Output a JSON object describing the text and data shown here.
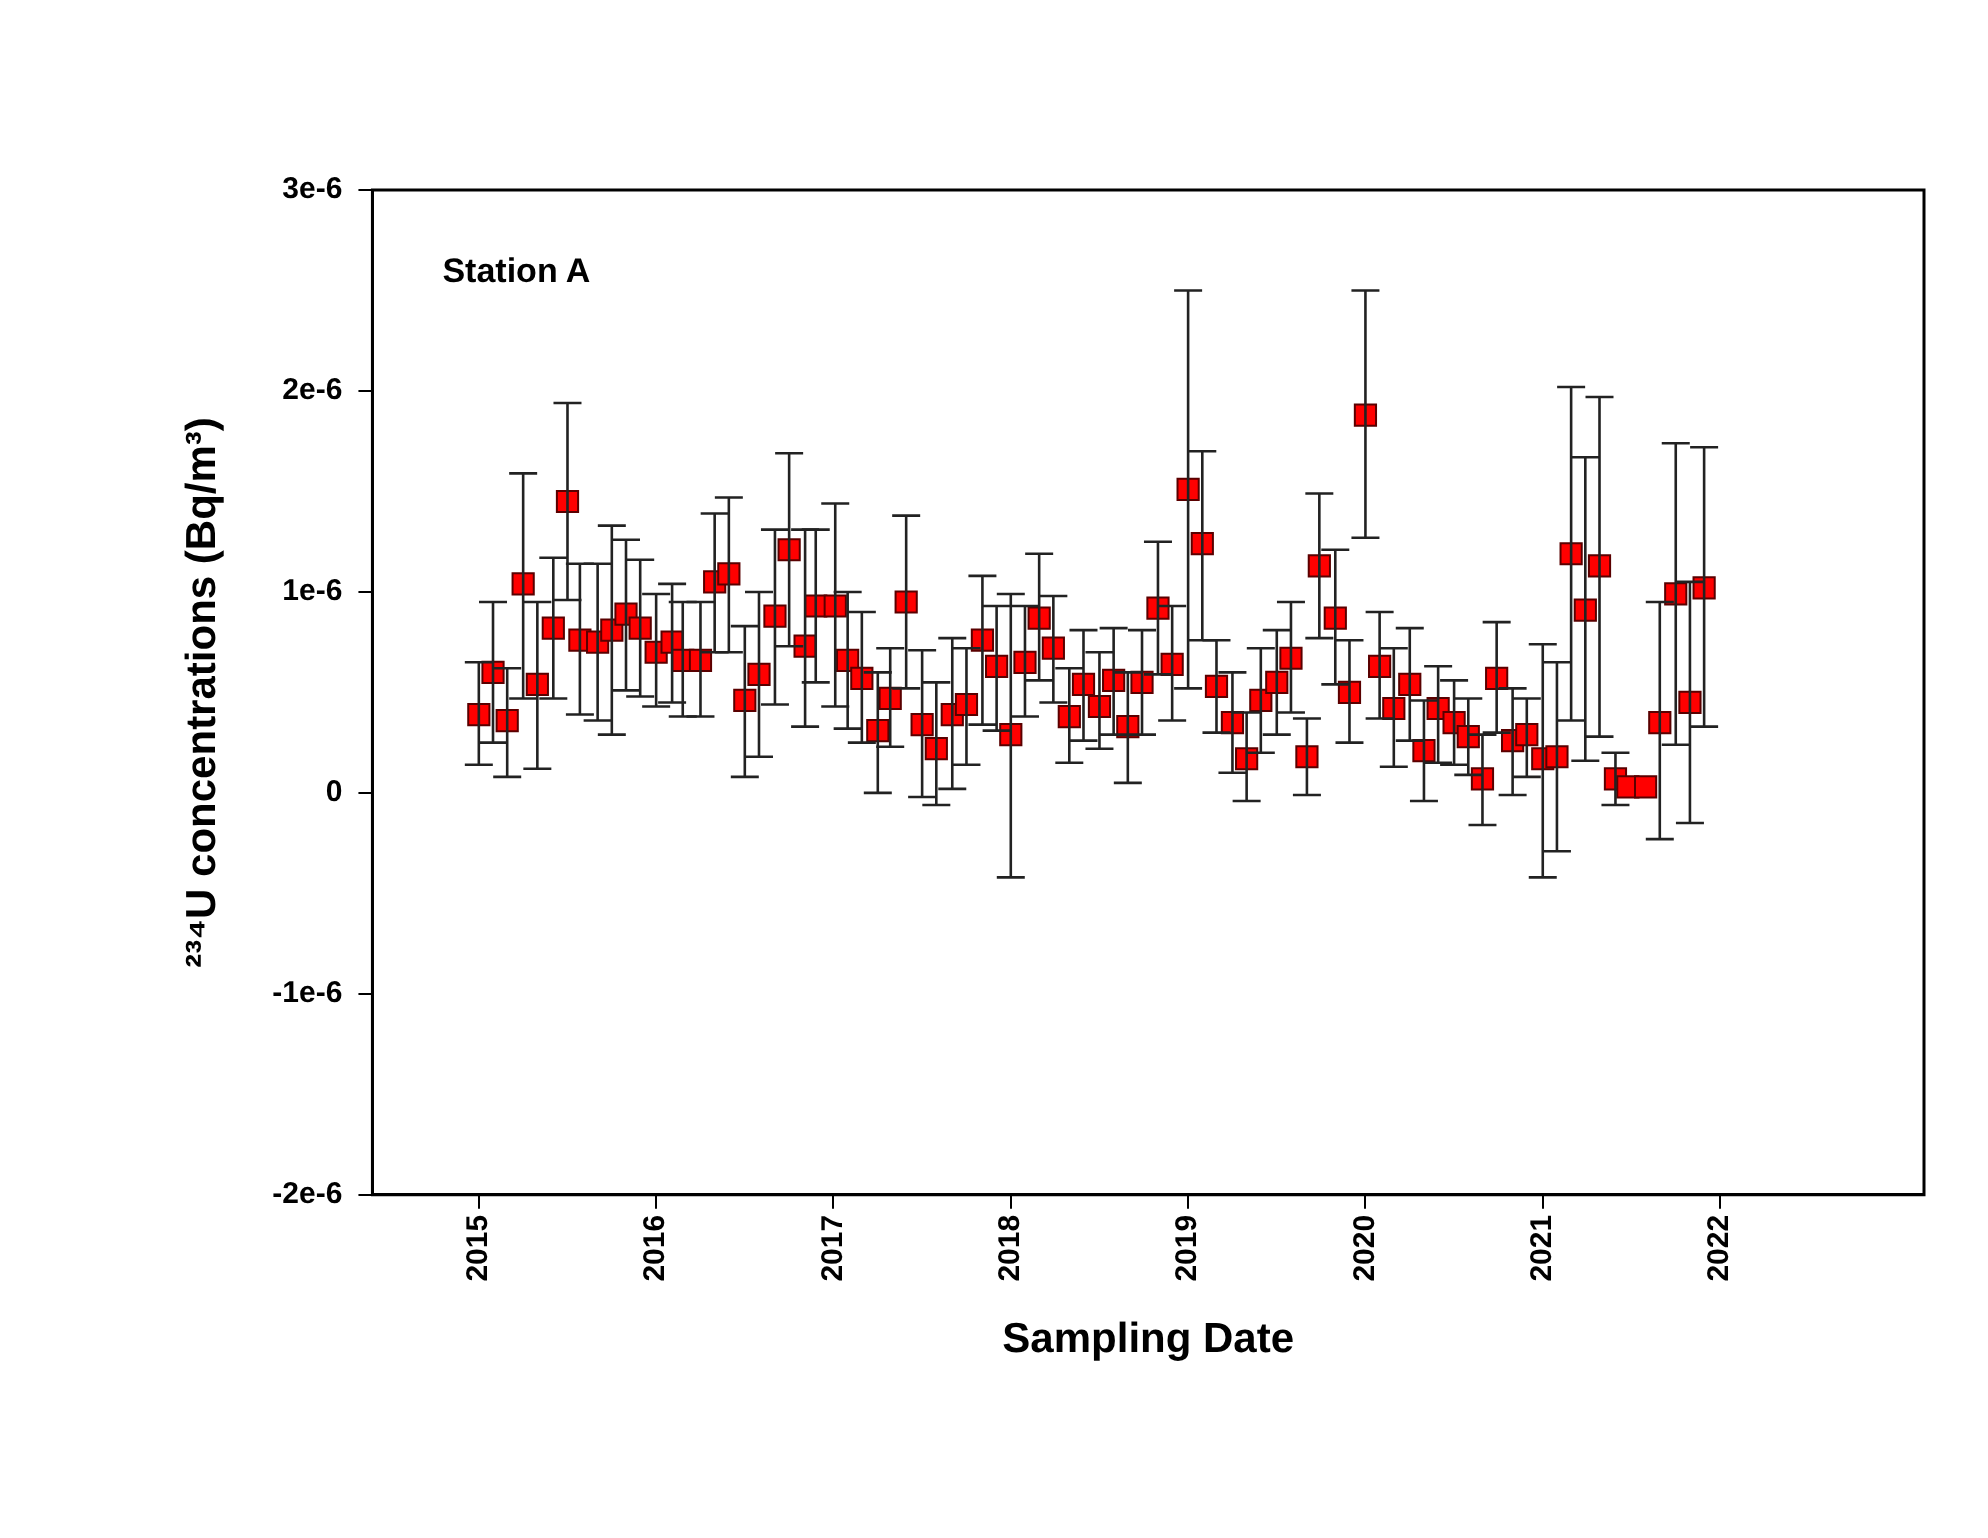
{
  "chart_data": {
    "type": "scatter",
    "xlabel": "Sampling Date",
    "ylabel": "²³⁴U concentrations (Bq/m³)",
    "annotations": [
      "Station A"
    ],
    "xlim": [
      2014.4,
      2023.15
    ],
    "xticks": [
      2015,
      2016,
      2017,
      2018,
      2019,
      2020,
      2021,
      2022
    ],
    "ylim": [
      -2e-06,
      3e-06
    ],
    "yticks": [
      {
        "value": -2e-06,
        "label": "-2e-6"
      },
      {
        "value": -1e-06,
        "label": "-1e-6"
      },
      0,
      {
        "value": 1e-06,
        "label": "1e-6"
      },
      {
        "value": 2e-06,
        "label": "2e-6"
      },
      {
        "value": 3e-06,
        "label": "3e-6"
      }
    ],
    "grid": false,
    "legend": false,
    "marker": "square",
    "series": [
      {
        "color": "#ff0000",
        "x": [
          2015.0,
          2015.08,
          2015.16,
          2015.25,
          2015.33,
          2015.42,
          2015.5,
          2015.57,
          2015.67,
          2015.75,
          2015.83,
          2015.91,
          2016.0,
          2016.09,
          2016.15,
          2016.25,
          2016.33,
          2016.41,
          2016.5,
          2016.58,
          2016.67,
          2016.75,
          2016.84,
          2016.9,
          2017.01,
          2017.08,
          2017.16,
          2017.25,
          2017.32,
          2017.41,
          2017.5,
          2017.58,
          2017.67,
          2017.75,
          2017.84,
          2017.92,
          2018.0,
          2018.08,
          2018.16,
          2018.24,
          2018.33,
          2018.41,
          2018.5,
          2018.58,
          2018.66,
          2018.74,
          2018.83,
          2018.91,
          2019.0,
          2019.08,
          2019.16,
          2019.25,
          2019.33,
          2019.41,
          2019.5,
          2019.58,
          2019.67,
          2019.74,
          2019.83,
          2019.91,
          2020.0,
          2020.08,
          2020.16,
          2020.25,
          2020.33,
          2020.41,
          2020.5,
          2020.58,
          2020.66,
          2020.74,
          2020.83,
          2020.91,
          2021.0,
          2021.08,
          2021.16,
          2021.24,
          2021.32,
          2021.41,
          2021.48,
          2021.58,
          2021.66,
          2021.75,
          2021.83,
          2021.91
        ],
        "values": [
          3.9e-07,
          6e-07,
          3.6e-07,
          1.04e-06,
          5.4e-07,
          8.2e-07,
          1.45e-06,
          7.6e-07,
          7.5e-07,
          8.1e-07,
          8.9e-07,
          8.2e-07,
          7e-07,
          7.5e-07,
          6.6e-07,
          6.6e-07,
          1.05e-06,
          1.09e-06,
          4.6e-07,
          5.9e-07,
          8.8e-07,
          1.21e-06,
          7.3e-07,
          9.3e-07,
          9.3e-07,
          6.6e-07,
          5.7e-07,
          3.1e-07,
          4.7e-07,
          9.5e-07,
          3.4e-07,
          2.2e-07,
          3.9e-07,
          4.4e-07,
          7.6e-07,
          6.3e-07,
          2.9e-07,
          6.5e-07,
          8.7e-07,
          7.2e-07,
          3.8e-07,
          5.4e-07,
          4.3e-07,
          5.6e-07,
          3.3e-07,
          5.5e-07,
          9.2e-07,
          6.4e-07,
          1.51e-06,
          1.24e-06,
          5.3e-07,
          3.5e-07,
          1.7e-07,
          4.6e-07,
          5.5e-07,
          6.7e-07,
          1.8e-07,
          1.13e-06,
          8.7e-07,
          5e-07,
          1.88e-06,
          6.3e-07,
          4.2e-07,
          5.4e-07,
          2.1e-07,
          4.2e-07,
          3.5e-07,
          2.8e-07,
          7e-08,
          5.7e-07,
          2.6e-07,
          2.9e-07,
          1.7e-07,
          1.8e-07,
          1.19e-06,
          9.1e-07,
          1.13e-06,
          7e-08,
          3e-08,
          3e-08,
          3.5e-07,
          9.9e-07,
          4.5e-07,
          1.02e-06
        ],
        "errors": [
          [
            1.4e-07,
            6.5e-07
          ],
          [
            2.5e-07,
            9.5e-07
          ],
          [
            8e-08,
            6.2e-07
          ],
          [
            4.7e-07,
            1.59e-06
          ],
          [
            1.2e-07,
            9.5e-07
          ],
          [
            4.7e-07,
            1.17e-06
          ],
          [
            9.6e-07,
            1.94e-06
          ],
          [
            3.9e-07,
            1.14e-06
          ],
          [
            3.6e-07,
            1.14e-06
          ],
          [
            2.9e-07,
            1.33e-06
          ],
          [
            5.1e-07,
            1.26e-06
          ],
          [
            4.8e-07,
            1.16e-06
          ],
          [
            4.3e-07,
            9.9e-07
          ],
          [
            4.5e-07,
            1.04e-06
          ],
          [
            3.8e-07,
            9.5e-07
          ],
          [
            3.8e-07,
            9.5e-07
          ],
          [
            7e-07,
            1.39e-06
          ],
          [
            7e-07,
            1.47e-06
          ],
          [
            8e-08,
            8.3e-07
          ],
          [
            1.8e-07,
            1e-06
          ],
          [
            4.4e-07,
            1.31e-06
          ],
          [
            7.3e-07,
            1.69e-06
          ],
          [
            3.3e-07,
            1.31e-06
          ],
          [
            5.5e-07,
            1.31e-06
          ],
          [
            4.3e-07,
            1.44e-06
          ],
          [
            3.2e-07,
            1e-06
          ],
          [
            2.5e-07,
            9e-07
          ],
          [
            0.0,
            6e-07
          ],
          [
            2.3e-07,
            7.2e-07
          ],
          [
            5.2e-07,
            1.38e-06
          ],
          [
            -2e-08,
            7.1e-07
          ],
          [
            -6e-08,
            5.5e-07
          ],
          [
            2e-08,
            7.7e-07
          ],
          [
            1.4e-07,
            7.2e-07
          ],
          [
            3.4e-07,
            1.08e-06
          ],
          [
            3.1e-07,
            9.3e-07
          ],
          [
            -4.2e-07,
            9.9e-07
          ],
          [
            3.8e-07,
            9.3e-07
          ],
          [
            5.6e-07,
            1.19e-06
          ],
          [
            4.5e-07,
            9.8e-07
          ],
          [
            1.5e-07,
            6.2e-07
          ],
          [
            2.6e-07,
            8.1e-07
          ],
          [
            2.2e-07,
            7e-07
          ],
          [
            2.9e-07,
            8.2e-07
          ],
          [
            5e-08,
            6e-07
          ],
          [
            2.9e-07,
            8.1e-07
          ],
          [
            5.9e-07,
            1.25e-06
          ],
          [
            3.6e-07,
            9.3e-07
          ],
          [
            5.2e-07,
            2.5e-06
          ],
          [
            7.6e-07,
            1.7e-06
          ],
          [
            3e-07,
            7.6e-07
          ],
          [
            1e-07,
            6e-07
          ],
          [
            -4e-08,
            4e-07
          ],
          [
            2e-07,
            7.2e-07
          ],
          [
            2.9e-07,
            8.1e-07
          ],
          [
            4e-07,
            9.5e-07
          ],
          [
            -1e-08,
            3.7e-07
          ],
          [
            7.7e-07,
            1.49e-06
          ],
          [
            5.4e-07,
            1.21e-06
          ],
          [
            2.5e-07,
            7.6e-07
          ],
          [
            1.27e-06,
            2.5e-06
          ],
          [
            3.7e-07,
            9e-07
          ],
          [
            1.3e-07,
            7.2e-07
          ],
          [
            2.6e-07,
            8.2e-07
          ],
          [
            -4e-08,
            4.6e-07
          ],
          [
            1.5e-07,
            6.3e-07
          ],
          [
            1.4e-07,
            5.6e-07
          ],
          [
            9e-08,
            4.7e-07
          ],
          [
            -1.6e-07,
            2.9e-07
          ],
          [
            3e-07,
            8.5e-07
          ],
          [
            -1e-08,
            5.2e-07
          ],
          [
            8e-08,
            4.7e-07
          ],
          [
            -4.2e-07,
            7.4e-07
          ],
          [
            -2.9e-07,
            6.5e-07
          ],
          [
            3.6e-07,
            2.02e-06
          ],
          [
            1.6e-07,
            1.67e-06
          ],
          [
            2.8e-07,
            1.97e-06
          ],
          [
            -6e-08,
            2e-07
          ],
          null,
          null,
          [
            -2.3e-07,
            9.5e-07
          ],
          [
            2.4e-07,
            1.74e-06
          ],
          [
            -1.5e-07,
            1.05e-06
          ],
          [
            3.3e-07,
            1.72e-06
          ]
        ]
      }
    ]
  }
}
